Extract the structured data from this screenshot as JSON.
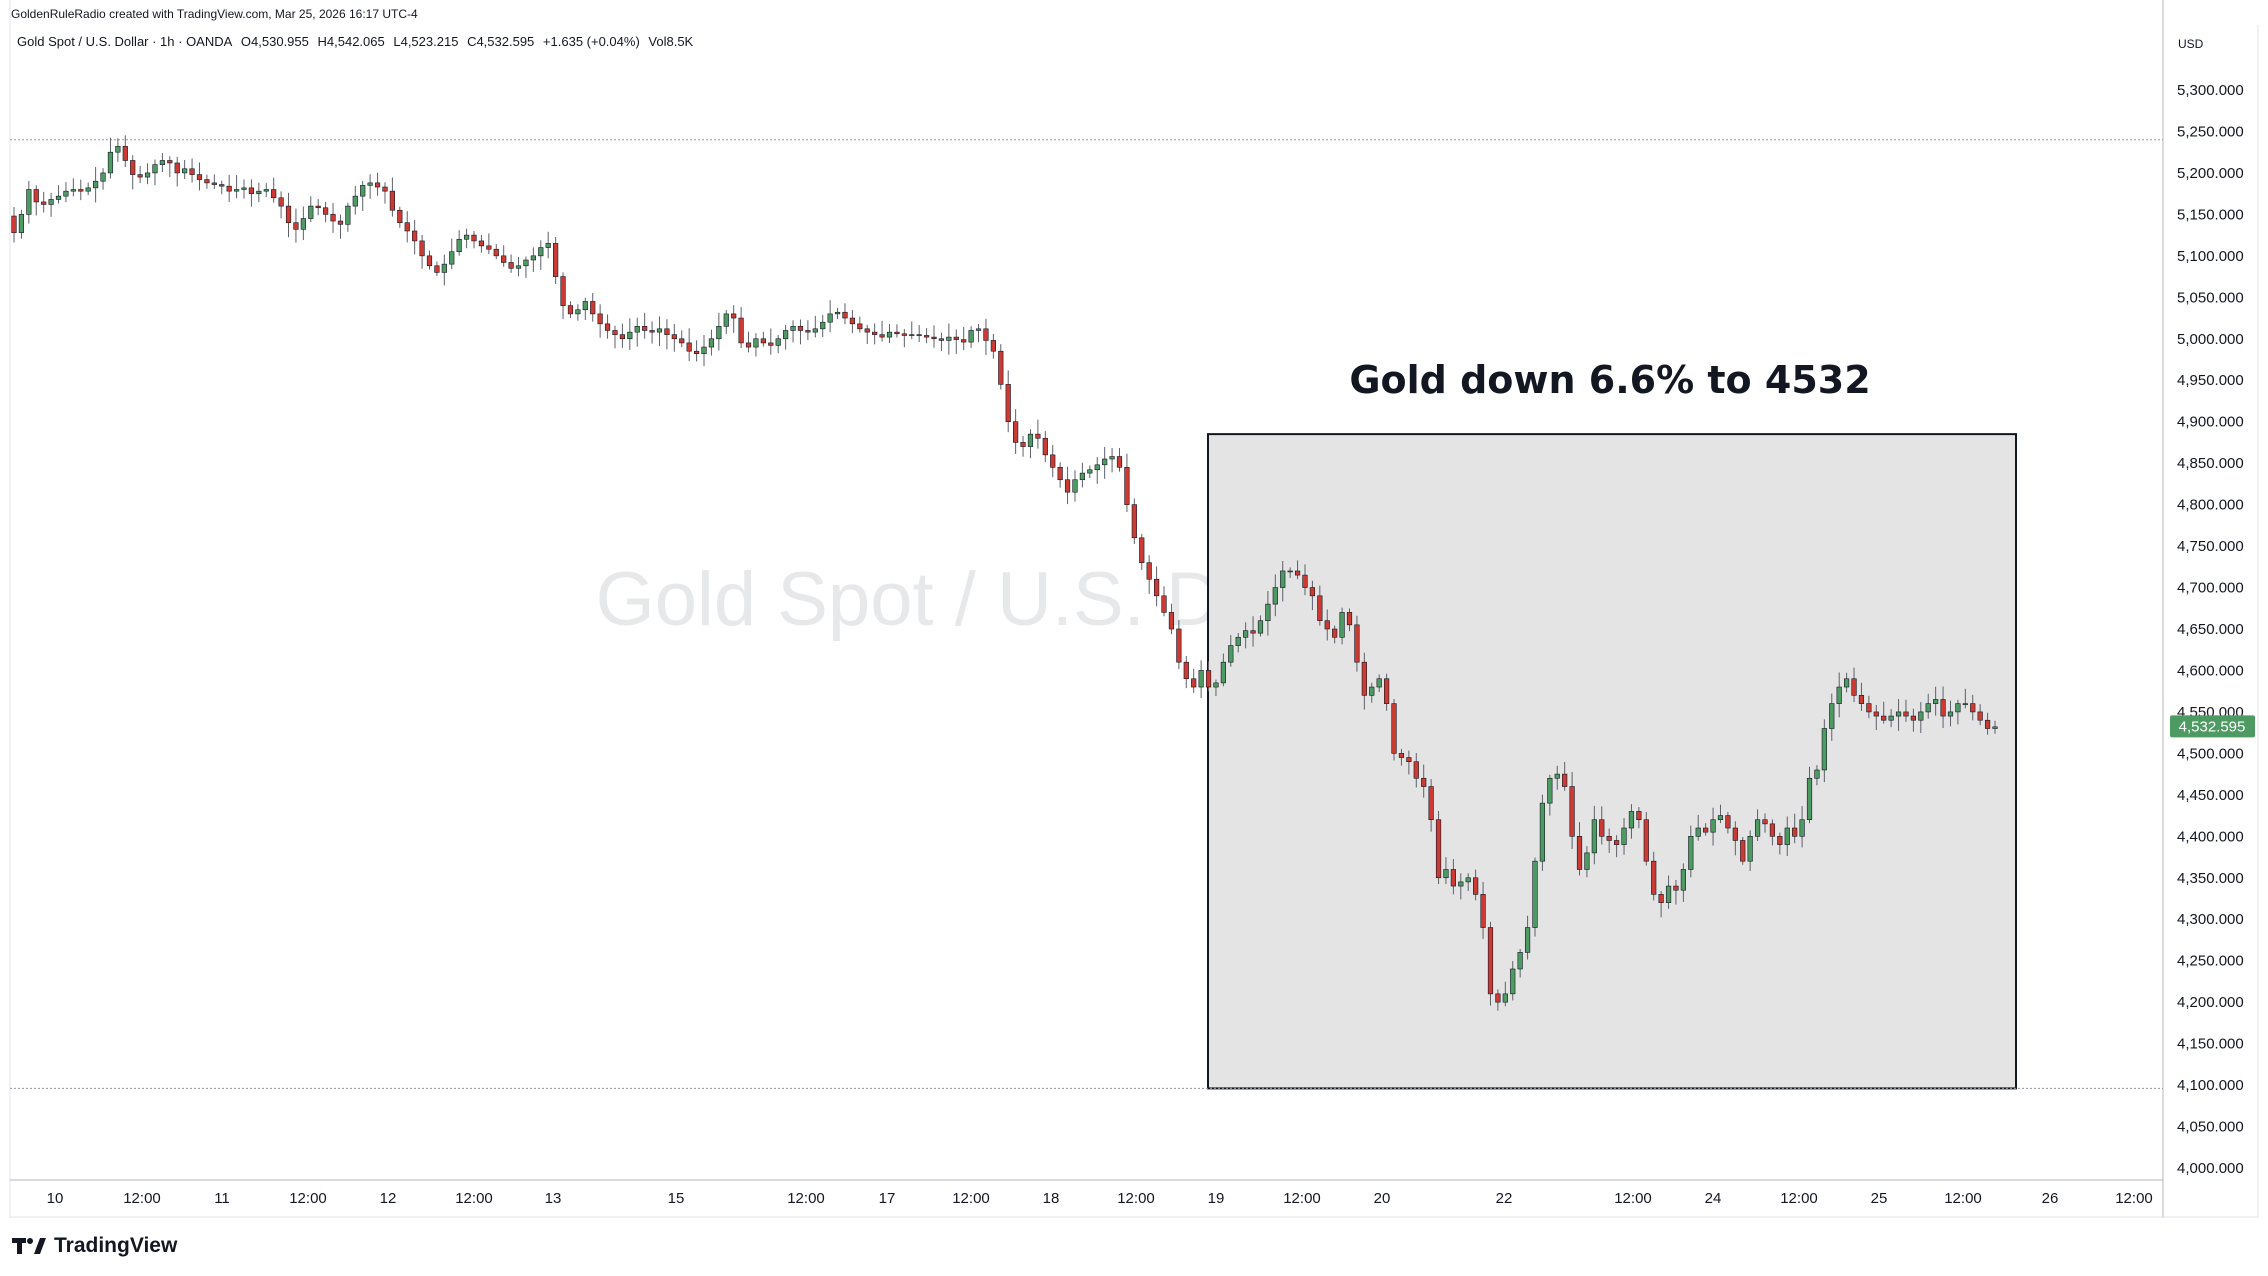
{
  "header": {
    "attribution": "GoldenRuleRadio created with TradingView.com, Mar 25, 2026 16:17 UTC-4"
  },
  "legend": {
    "symbol": "Gold Spot / U.S. Dollar · 1h · OANDA",
    "open": "O4,530.955",
    "high": "H4,542.065",
    "low": "L4,523.215",
    "close": "C4,532.595",
    "change": "+1.635 (+0.04%)",
    "volume": "Vol8.5K"
  },
  "watermark": "Gold Spot / U.S. Dollar",
  "logo": {
    "text": "TradingView",
    "icon": "tradingview-logo-icon"
  },
  "colors": {
    "up": "#4e9a63",
    "down": "#cc3b33",
    "wick": "#5d606b",
    "last_price_bg": "#4e9a63",
    "box_fill": "#e4e4e4",
    "grid_dotted": "#9598a1"
  },
  "annotation": {
    "text": "Gold down 6.6% to 4532"
  },
  "chart_data": {
    "type": "candlestick",
    "title": "Gold Spot / U.S. Dollar",
    "timeframe": "1h",
    "currency_label": "USD",
    "last_price": "4,532.595",
    "ylim": [
      3980,
      5420
    ],
    "y_ticks": [
      "5,300.000",
      "5,250.000",
      "5,200.000",
      "5,150.000",
      "5,100.000",
      "5,050.000",
      "5,000.000",
      "4,950.000",
      "4,900.000",
      "4,850.000",
      "4,800.000",
      "4,750.000",
      "4,700.000",
      "4,650.000",
      "4,600.000",
      "4,550.000",
      "4,500.000",
      "4,450.000",
      "4,400.000",
      "4,350.000",
      "4,300.000",
      "4,250.000",
      "4,200.000",
      "4,150.000",
      "4,100.000",
      "4,050.000",
      "4,000.000"
    ],
    "x_ticks": [
      "10",
      "12:00",
      "11",
      "12:00",
      "12",
      "12:00",
      "13",
      "15",
      "12:00",
      "17",
      "12:00",
      "18",
      "12:00",
      "19",
      "12:00",
      "20",
      "22",
      "12:00",
      "24",
      "12:00",
      "25",
      "12:00",
      "26",
      "12:00"
    ],
    "reference_lines": [
      5240,
      4096
    ],
    "highlight_box": {
      "x_range": [
        "Mar 19",
        "Mar 25"
      ],
      "y_range": [
        4096,
        4885
      ]
    },
    "closes": [
      5128,
      5150,
      5180,
      5165,
      5162,
      5168,
      5172,
      5178,
      5180,
      5178,
      5182,
      5190,
      5200,
      5225,
      5232,
      5215,
      5198,
      5195,
      5200,
      5210,
      5215,
      5212,
      5200,
      5205,
      5198,
      5192,
      5188,
      5186,
      5184,
      5178,
      5180,
      5182,
      5175,
      5178,
      5180,
      5170,
      5160,
      5140,
      5132,
      5145,
      5160,
      5158,
      5150,
      5142,
      5138,
      5160,
      5172,
      5185,
      5188,
      5183,
      5178,
      5155,
      5140,
      5130,
      5118,
      5100,
      5088,
      5080,
      5090,
      5105,
      5120,
      5125,
      5118,
      5112,
      5108,
      5100,
      5092,
      5085,
      5088,
      5095,
      5100,
      5110,
      5115,
      5075,
      5040,
      5030,
      5035,
      5045,
      5030,
      5018,
      5010,
      5005,
      5000,
      5008,
      5015,
      5010,
      5008,
      5012,
      5005,
      5000,
      4995,
      4985,
      4982,
      4990,
      5000,
      5015,
      5030,
      5025,
      4995,
      4990,
      5000,
      4995,
      4992,
      5000,
      5010,
      5015,
      5010,
      5008,
      5012,
      5020,
      5030,
      5032,
      5025,
      5018,
      5012,
      5008,
      5005,
      5002,
      5008,
      5006,
      5004,
      5005,
      5004,
      5002,
      5000,
      4998,
      5002,
      4999,
      4996,
      5010,
      5012,
      4998,
      4985,
      4945,
      4900,
      4875,
      4870,
      4885,
      4880,
      4860,
      4845,
      4830,
      4815,
      4830,
      4838,
      4842,
      4848,
      4855,
      4858,
      4845,
      4800,
      4760,
      4730,
      4710,
      4690,
      4670,
      4650,
      4610,
      4590,
      4580,
      4600,
      4580,
      4585,
      4610,
      4630,
      4640,
      4648,
      4645,
      4660,
      4680,
      4700,
      4720,
      4720,
      4715,
      4700,
      4690,
      4660,
      4650,
      4640,
      4670,
      4655,
      4610,
      4570,
      4580,
      4590,
      4560,
      4500,
      4495,
      4490,
      4470,
      4460,
      4420,
      4350,
      4360,
      4340,
      4345,
      4350,
      4330,
      4290,
      4210,
      4200,
      4210,
      4240,
      4260,
      4290,
      4370,
      4440,
      4470,
      4475,
      4460,
      4400,
      4360,
      4380,
      4420,
      4400,
      4395,
      4390,
      4410,
      4430,
      4420,
      4370,
      4330,
      4320,
      4340,
      4335,
      4360,
      4400,
      4410,
      4405,
      4420,
      4425,
      4410,
      4395,
      4370,
      4400,
      4420,
      4415,
      4400,
      4390,
      4410,
      4400,
      4420,
      4470,
      4480,
      4530,
      4560,
      4580,
      4590,
      4570,
      4560,
      4550,
      4545,
      4540,
      4545,
      4550,
      4545,
      4540,
      4550,
      4560,
      4565,
      4545,
      4550,
      4560,
      4560,
      4550,
      4540,
      4530,
      4532
    ]
  }
}
